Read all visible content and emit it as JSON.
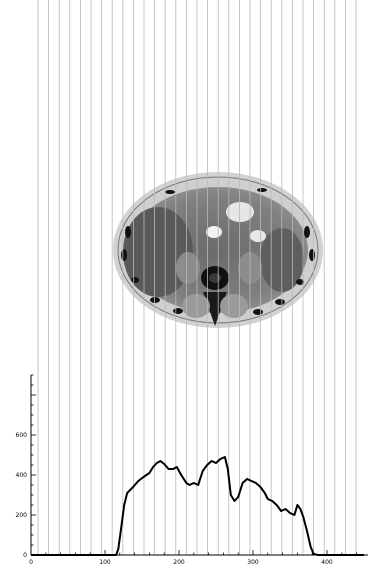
{
  "colors": {
    "background": "#ffffff",
    "projection_lines": "#b9b9b9",
    "profile_line": "#000000",
    "axes": "#000000"
  },
  "scan": {
    "type": "axial CT slice (abdomen), grayscale phantom image overlaid with vertical projection lines"
  },
  "chart_data": {
    "type": "line",
    "title": "",
    "xlabel": "",
    "ylabel": "",
    "xlim": [
      0,
      450
    ],
    "ylim": [
      0,
      900
    ],
    "x_ticks": [
      0,
      100,
      200,
      300,
      400
    ],
    "y_ticks": [
      0,
      200,
      400,
      600
    ],
    "x_tick_labels": [
      "0",
      "100",
      "200",
      "300",
      "400"
    ],
    "y_tick_labels": [
      "0",
      "200",
      "400",
      "600"
    ],
    "grid": false,
    "series": [
      {
        "x": [
          0,
          100,
          115,
          118,
          122,
          126,
          130,
          138,
          145,
          152,
          160,
          165,
          170,
          175,
          180,
          186,
          192,
          197,
          203,
          210,
          214,
          220,
          226,
          232,
          238,
          244,
          250,
          256,
          262,
          266,
          270,
          275,
          280,
          286,
          292,
          298,
          304,
          310,
          316,
          320,
          326,
          332,
          338,
          344,
          350,
          356,
          360,
          364,
          368,
          373,
          378,
          382,
          388,
          450
        ],
        "y": [
          0,
          0,
          0,
          30,
          140,
          250,
          310,
          340,
          370,
          390,
          410,
          440,
          460,
          470,
          455,
          430,
          430,
          440,
          400,
          360,
          350,
          360,
          350,
          420,
          450,
          470,
          460,
          480,
          490,
          430,
          300,
          270,
          290,
          360,
          380,
          370,
          360,
          340,
          310,
          280,
          270,
          250,
          220,
          230,
          210,
          200,
          250,
          230,
          190,
          120,
          40,
          5,
          0,
          0
        ]
      }
    ]
  }
}
